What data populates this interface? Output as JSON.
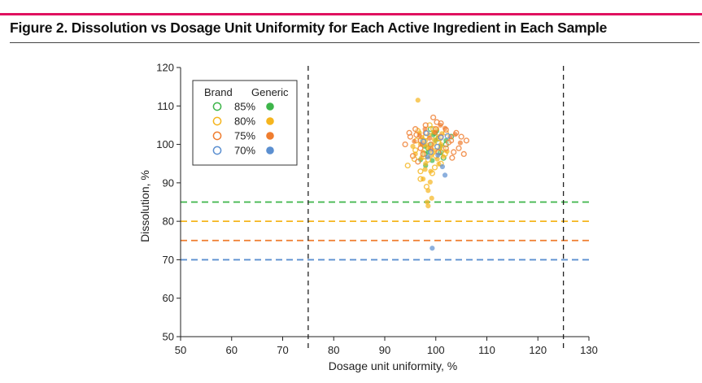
{
  "figure_title": "Figure 2. Dissolution vs Dosage Unit Uniformity for Each Active Ingredient in Each Sample",
  "colors": {
    "accent_bar": "#e0115f",
    "green": "#3db54a",
    "yellow": "#f5b51e",
    "orange": "#ef7d2f",
    "blue": "#5b8fd0"
  },
  "chart_data": {
    "type": "scatter",
    "xlabel": "Dosage unit uniformity, %",
    "ylabel": "Dissolution, %",
    "xlim": [
      50,
      130
    ],
    "ylim": [
      50,
      120
    ],
    "xticks": [
      50,
      60,
      70,
      80,
      90,
      100,
      110,
      120,
      130
    ],
    "yticks": [
      50,
      60,
      70,
      80,
      90,
      100,
      110,
      120
    ],
    "vertical_reference_lines": [
      75,
      125
    ],
    "horizontal_reference_lines": [
      {
        "y": 85,
        "color": "#3db54a"
      },
      {
        "y": 80,
        "color": "#f5b51e"
      },
      {
        "y": 75,
        "color": "#ef7d2f"
      },
      {
        "y": 70,
        "color": "#5b8fd0"
      }
    ],
    "legend": {
      "placement": "top-left",
      "brand_header": "Brand",
      "generic_header": "Generic",
      "rows": [
        {
          "label": "85%",
          "color": "#3db54a"
        },
        {
          "label": "80%",
          "color": "#f5b51e"
        },
        {
          "label": "75%",
          "color": "#ef7d2f"
        },
        {
          "label": "70%",
          "color": "#5b8fd0"
        }
      ]
    },
    "series": [
      {
        "group": "85%",
        "type": "brand",
        "color": "#3db54a",
        "points": [
          [
            97.5,
            101
          ],
          [
            98.5,
            99
          ],
          [
            99.8,
            103
          ],
          [
            101,
            98
          ],
          [
            102,
            100
          ],
          [
            100.5,
            101.5
          ],
          [
            97.8,
            97.5
          ],
          [
            103,
            102
          ],
          [
            99,
            104
          ],
          [
            101.5,
            96.5
          ]
        ]
      },
      {
        "group": "85%",
        "type": "generic",
        "color": "#3db54a",
        "points": [
          [
            99,
            100
          ],
          [
            100,
            101
          ],
          [
            98.5,
            98
          ],
          [
            101,
            99.5
          ],
          [
            97,
            96
          ],
          [
            99.5,
            102.5
          ],
          [
            100.8,
            97.8
          ],
          [
            98,
            94.5
          ],
          [
            102,
            101
          ],
          [
            97.8,
            99.5
          ],
          [
            99.3,
            95.8
          ],
          [
            100.2,
            103.5
          ]
        ]
      },
      {
        "group": "80%",
        "type": "brand",
        "color": "#f5b51e",
        "points": [
          [
            94.5,
            94.5
          ],
          [
            96,
            98.5
          ],
          [
            97,
            91
          ],
          [
            97.5,
            100
          ],
          [
            98,
            102
          ],
          [
            98.5,
            96
          ],
          [
            99,
            99
          ],
          [
            99.5,
            104
          ],
          [
            100,
            97
          ],
          [
            100.5,
            100.5
          ],
          [
            101,
            95
          ],
          [
            101.5,
            99
          ],
          [
            102,
            103
          ],
          [
            97,
            93
          ],
          [
            98.2,
            89
          ],
          [
            99.3,
            92.5
          ],
          [
            96.5,
            103.5
          ],
          [
            100.8,
            101.5
          ],
          [
            98.8,
            105
          ],
          [
            97.6,
            96.8
          ],
          [
            99.8,
            94
          ],
          [
            101.8,
            97.5
          ],
          [
            96.2,
            101
          ],
          [
            95.8,
            96.2
          ]
        ]
      },
      {
        "group": "80%",
        "type": "generic",
        "color": "#f5b51e",
        "points": [
          [
            96.5,
            111.5
          ],
          [
            97,
            100
          ],
          [
            97.5,
            98
          ],
          [
            98,
            101
          ],
          [
            98.5,
            99
          ],
          [
            99,
            97
          ],
          [
            99.5,
            100
          ],
          [
            100,
            98.5
          ],
          [
            100.5,
            102
          ],
          [
            101,
            100
          ],
          [
            98,
            95
          ],
          [
            99,
            93
          ],
          [
            97.5,
            91
          ],
          [
            98.5,
            88
          ],
          [
            98.3,
            85
          ],
          [
            98.5,
            84
          ],
          [
            99.2,
            86
          ],
          [
            96.8,
            103
          ],
          [
            100.2,
            104
          ],
          [
            101.5,
            96.8
          ],
          [
            97.2,
            96.5
          ],
          [
            98.7,
            102.5
          ],
          [
            99.7,
            101.2
          ],
          [
            100.8,
            99
          ],
          [
            96,
            97.5
          ],
          [
            98.9,
            90.2
          ],
          [
            97.9,
            93.5
          ],
          [
            99.4,
            97.8
          ],
          [
            100.3,
            96.2
          ],
          [
            101.2,
            102.8
          ],
          [
            95.5,
            99.5
          ],
          [
            102.2,
            98.2
          ],
          [
            98.1,
            99.9
          ],
          [
            99.6,
            103.2
          ],
          [
            97.3,
            101.8
          ],
          [
            100.6,
            94.9
          ]
        ]
      },
      {
        "group": "75%",
        "type": "brand",
        "color": "#ef7d2f",
        "points": [
          [
            94,
            100
          ],
          [
            95,
            102
          ],
          [
            96,
            104
          ],
          [
            97,
            101
          ],
          [
            98,
            103
          ],
          [
            99,
            100
          ],
          [
            100,
            104
          ],
          [
            101,
            102
          ],
          [
            102,
            99
          ],
          [
            103,
            101
          ],
          [
            104,
            103
          ],
          [
            105,
            102
          ],
          [
            106,
            101
          ],
          [
            104.5,
            99
          ],
          [
            103.5,
            98
          ],
          [
            97,
            99
          ],
          [
            95.5,
            97
          ],
          [
            96.5,
            95.5
          ],
          [
            105.5,
            97.5
          ],
          [
            99.5,
            107
          ],
          [
            101,
            105.5
          ],
          [
            98,
            105
          ],
          [
            102.5,
            100.5
          ],
          [
            100.5,
            98
          ],
          [
            97.5,
            97.5
          ],
          [
            94.8,
            103
          ],
          [
            103.2,
            96.5
          ],
          [
            96.2,
            102.5
          ],
          [
            100.2,
            105.8
          ],
          [
            102,
            103.8
          ]
        ]
      },
      {
        "group": "75%",
        "type": "generic",
        "color": "#ef7d2f",
        "points": [
          [
            96.8,
            102.3
          ],
          [
            97.9,
            104
          ],
          [
            98.8,
            101.6
          ],
          [
            99.9,
            103.1
          ],
          [
            100.9,
            105
          ],
          [
            101.8,
            104.2
          ],
          [
            102.8,
            102
          ],
          [
            95.8,
            100.8
          ],
          [
            104.8,
            100.4
          ],
          [
            99.1,
            98.7
          ],
          [
            103.8,
            102.6
          ],
          [
            97.3,
            100.2
          ]
        ]
      },
      {
        "group": "70%",
        "type": "brand",
        "color": "#5b8fd0",
        "points": [
          [
            99,
            98
          ],
          [
            101,
            101.8
          ],
          [
            98.2,
            102.9
          ],
          [
            100.3,
            99.4
          ],
          [
            102.3,
            102.2
          ],
          [
            97.6,
            100.7
          ]
        ]
      },
      {
        "group": "70%",
        "type": "generic",
        "color": "#5b8fd0",
        "points": [
          [
            99.3,
            73
          ],
          [
            101.8,
            92
          ],
          [
            100.4,
            97.2
          ],
          [
            98.4,
            96.7
          ],
          [
            101.3,
            94.2
          ]
        ]
      }
    ]
  }
}
